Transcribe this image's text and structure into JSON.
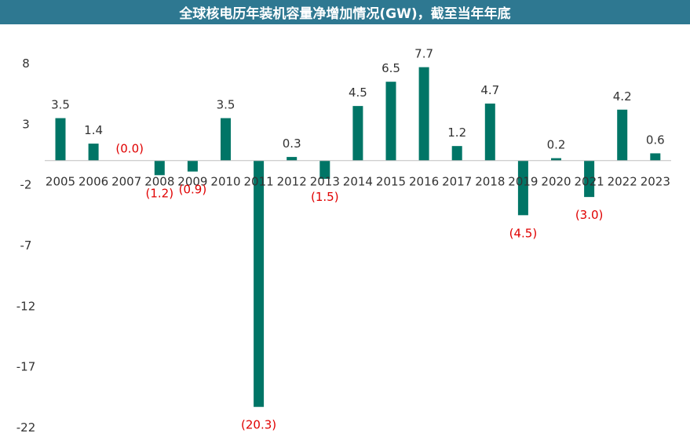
{
  "chart_data": {
    "type": "bar",
    "title": "全球核电历年装机容量净增加情况(GW)，截至当年年底",
    "categories": [
      "2005",
      "2006",
      "2007",
      "2008",
      "2009",
      "2010",
      "2011",
      "2012",
      "2013",
      "2014",
      "2015",
      "2016",
      "2017",
      "2018",
      "2019",
      "2020",
      "2021",
      "2022",
      "2023"
    ],
    "values": [
      3.5,
      1.4,
      0.0,
      -1.2,
      -0.9,
      3.5,
      -20.3,
      0.3,
      -1.5,
      4.5,
      6.5,
      7.7,
      1.2,
      4.7,
      -4.5,
      0.2,
      -3.0,
      4.2,
      0.6
    ],
    "data_labels": [
      "3.5",
      "1.4",
      "(0.0)",
      "(1.2)",
      "(0.9)",
      "3.5",
      "(20.3)",
      "0.3",
      "(1.5)",
      "4.5",
      "6.5",
      "7.7",
      "1.2",
      "4.7",
      "(4.5)",
      "0.2",
      "(3.0)",
      "4.2",
      "0.6"
    ],
    "yticks": [
      8,
      3,
      -2,
      -7,
      -12,
      -17,
      -22
    ],
    "ylim": [
      -22,
      8
    ],
    "grid": false,
    "xlabel": "",
    "ylabel": "",
    "colors": {
      "bar": "#007566",
      "negative_label": "#e00000",
      "positive_label": "#333333",
      "title_bg": "#2e7891"
    }
  }
}
